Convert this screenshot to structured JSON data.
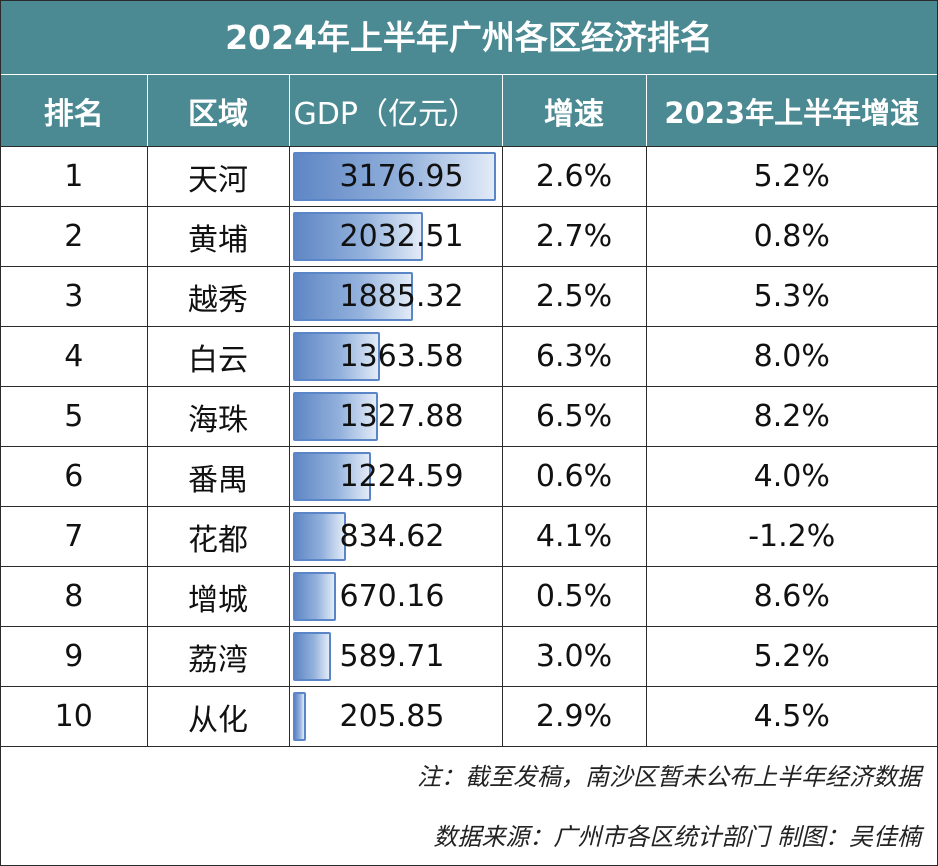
{
  "title": "2024年上半年广州各区经济排名",
  "headers": {
    "rank": "排名",
    "district": "区域",
    "gdp": "GDP（亿元）",
    "growth": "增速",
    "prev_growth": "2023年上半年增速"
  },
  "rows": [
    {
      "rank": "1",
      "district": "天河",
      "gdp": "3176.95",
      "gdp_value": 3176.95,
      "growth": "2.6%",
      "prev_growth": "5.2%"
    },
    {
      "rank": "2",
      "district": "黄埔",
      "gdp": "2032.51",
      "gdp_value": 2032.51,
      "growth": "2.7%",
      "prev_growth": "0.8%"
    },
    {
      "rank": "3",
      "district": "越秀",
      "gdp": "1885.32",
      "gdp_value": 1885.32,
      "growth": "2.5%",
      "prev_growth": "5.3%"
    },
    {
      "rank": "4",
      "district": "白云",
      "gdp": "1363.58",
      "gdp_value": 1363.58,
      "growth": "6.3%",
      "prev_growth": "8.0%"
    },
    {
      "rank": "5",
      "district": "海珠",
      "gdp": "1327.88",
      "gdp_value": 1327.88,
      "growth": "6.5%",
      "prev_growth": "8.2%"
    },
    {
      "rank": "6",
      "district": "番禺",
      "gdp": "1224.59",
      "gdp_value": 1224.59,
      "growth": "0.6%",
      "prev_growth": "4.0%"
    },
    {
      "rank": "7",
      "district": "花都",
      "gdp": "834.62",
      "gdp_value": 834.62,
      "growth": "4.1%",
      "prev_growth": "-1.2%"
    },
    {
      "rank": "8",
      "district": "增城",
      "gdp": "670.16",
      "gdp_value": 670.16,
      "growth": "0.5%",
      "prev_growth": "8.6%"
    },
    {
      "rank": "9",
      "district": "荔湾",
      "gdp": "589.71",
      "gdp_value": 589.71,
      "growth": "3.0%",
      "prev_growth": "5.2%"
    },
    {
      "rank": "10",
      "district": "从化",
      "gdp": "205.85",
      "gdp_value": 205.85,
      "growth": "2.9%",
      "prev_growth": "4.5%"
    }
  ],
  "notes": {
    "note1": "注：截至发稿，南沙区暂未公布上半年经济数据",
    "note2": "数据来源：广州市各区统计部门 制图：吴佳楠"
  },
  "colors": {
    "header_bg": "#4b8a93",
    "bar_border": "#5a86c8",
    "bar_start": "#5f87c5",
    "bar_end": "#e2ebf7"
  }
}
